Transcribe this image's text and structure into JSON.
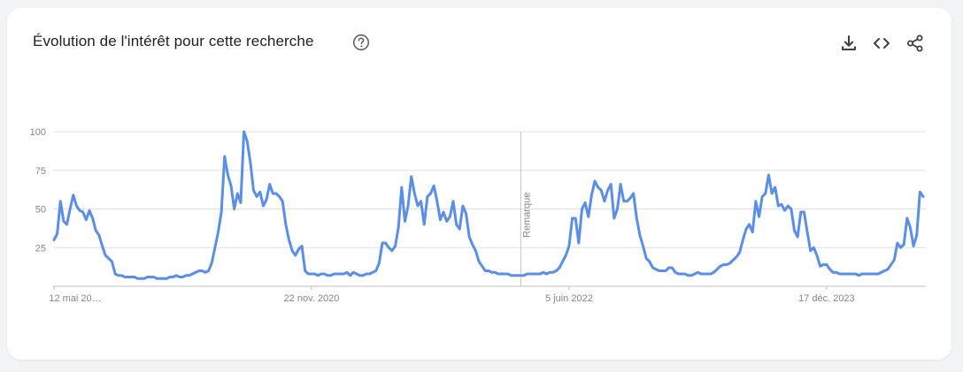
{
  "header": {
    "title": "Évolution de l'intérêt pour cette recherche",
    "help_icon": "help-circle-icon",
    "toolbar_icons": [
      "download-icon",
      "embed-code-icon",
      "share-icon"
    ]
  },
  "colors": {
    "line": "#5b8ee6",
    "grid": "#e0e0e0",
    "axis": "#bdbdbd",
    "text": "#202124",
    "muted": "#80868b"
  },
  "chart_data": {
    "type": "line",
    "ylim": [
      0,
      100
    ],
    "yticks": [
      25,
      50,
      75,
      100
    ],
    "xtick_labels": [
      "12 mai 20…",
      "22 nov. 2020",
      "5 juin 2022",
      "17 déc. 2023"
    ],
    "xtick_index": [
      0,
      80,
      160,
      240
    ],
    "annotation": {
      "label": "Remarque",
      "index": 145
    },
    "grid": true,
    "legend": "none",
    "values": [
      30,
      34,
      55,
      42,
      40,
      50,
      59,
      52,
      49,
      48,
      43,
      49,
      44,
      36,
      33,
      26,
      20,
      18,
      16,
      8,
      7,
      7,
      6,
      6,
      6,
      6,
      5,
      5,
      5,
      6,
      6,
      6,
      5,
      5,
      5,
      5,
      6,
      6,
      7,
      6,
      6,
      7,
      7,
      8,
      9,
      10,
      10,
      9,
      10,
      15,
      25,
      35,
      48,
      84,
      72,
      65,
      50,
      60,
      54,
      100,
      94,
      80,
      62,
      58,
      61,
      52,
      56,
      66,
      60,
      60,
      58,
      55,
      40,
      30,
      23,
      20,
      24,
      26,
      10,
      8,
      8,
      8,
      7,
      8,
      8,
      7,
      7,
      8,
      8,
      8,
      8,
      9,
      7,
      9,
      8,
      7,
      7,
      8,
      8,
      9,
      10,
      15,
      28,
      28,
      25,
      23,
      26,
      38,
      64,
      42,
      52,
      71,
      60,
      52,
      55,
      40,
      58,
      60,
      65,
      55,
      43,
      48,
      42,
      45,
      55,
      40,
      37,
      52,
      47,
      32,
      27,
      23,
      16,
      13,
      10,
      10,
      9,
      9,
      8,
      8,
      8,
      8,
      7,
      7,
      7,
      7,
      7,
      8,
      8,
      8,
      8,
      8,
      9,
      8,
      9,
      9,
      10,
      12,
      16,
      20,
      26,
      44,
      44,
      28,
      50,
      54,
      45,
      59,
      68,
      64,
      62,
      55,
      62,
      66,
      44,
      50,
      66,
      55,
      55,
      57,
      60,
      44,
      33,
      26,
      18,
      16,
      12,
      11,
      10,
      10,
      10,
      12,
      12,
      9,
      8,
      8,
      8,
      7,
      7,
      8,
      9,
      8,
      8,
      8,
      8,
      9,
      11,
      13,
      14,
      14,
      15,
      17,
      19,
      22,
      30,
      37,
      40,
      35,
      55,
      45,
      58,
      60,
      72,
      60,
      64,
      52,
      53,
      49,
      52,
      50,
      36,
      32,
      48,
      48,
      35,
      23,
      25,
      20,
      13,
      14,
      14,
      11,
      9,
      9,
      8,
      8,
      8,
      8,
      8,
      8,
      7,
      8,
      8,
      8,
      8,
      8,
      8,
      9,
      10,
      11,
      14,
      17,
      28,
      25,
      27,
      44,
      38,
      26,
      33,
      61,
      58
    ]
  }
}
